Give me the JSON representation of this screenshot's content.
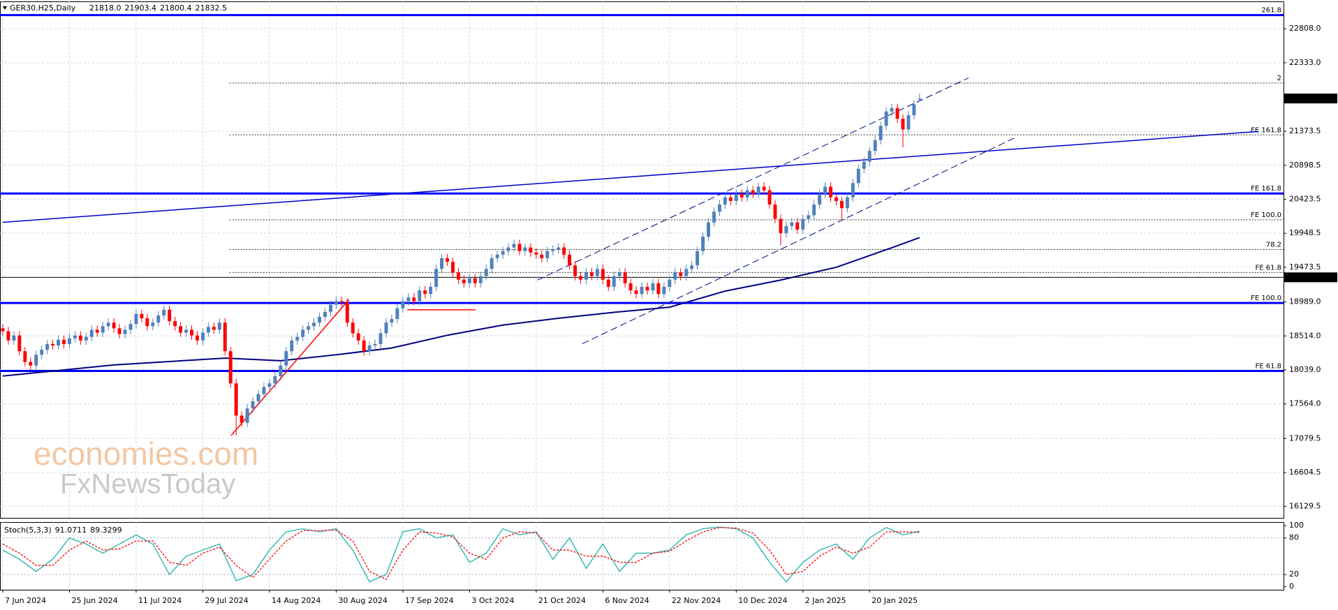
{
  "chart_data": {
    "type": "candlestick",
    "title": "GER30.H25,Daily",
    "header_values": [
      "21818.0",
      "21903.4",
      "21800.4",
      "21832.5"
    ],
    "color_up": "#4f81bd",
    "color_down": "#ff0000",
    "grid": true,
    "xlim": [
      -0.5,
      230.5
    ],
    "ylim": [
      15970,
      23190
    ],
    "xticks": [
      {
        "value": 0,
        "label": "7 Jun 2024"
      },
      {
        "value": 12,
        "label": "25 Jun 2024"
      },
      {
        "value": 24,
        "label": "11 Jul 2024"
      },
      {
        "value": 36,
        "label": "29 Jul 2024"
      },
      {
        "value": 48,
        "label": "14 Aug 2024"
      },
      {
        "value": 60,
        "label": "30 Aug 2024"
      },
      {
        "value": 72,
        "label": "17 Sep 2024"
      },
      {
        "value": 84,
        "label": "3 Oct 2024"
      },
      {
        "value": 96,
        "label": "21 Oct 2024"
      },
      {
        "value": 108,
        "label": "6 Nov 2024"
      },
      {
        "value": 120,
        "label": "22 Nov 2024"
      },
      {
        "value": 132,
        "label": "10 Dec 2024"
      },
      {
        "value": 144,
        "label": "2 Jan 2025"
      },
      {
        "value": 156,
        "label": "20 Jan 2025"
      }
    ],
    "yticks": [
      {
        "value": 22808,
        "label": "22808.0"
      },
      {
        "value": 22333,
        "label": "22333.0"
      },
      {
        "value": 21373.5,
        "label": "21373.5"
      },
      {
        "value": 20898.5,
        "label": "20898.5"
      },
      {
        "value": 20423.5,
        "label": "20423.5"
      },
      {
        "value": 19948.5,
        "label": "19948.5"
      },
      {
        "value": 19473.5,
        "label": "19473.5"
      },
      {
        "value": 18989,
        "label": "18989.0"
      },
      {
        "value": 18514,
        "label": "18514.0"
      },
      {
        "value": 18039,
        "label": "18039.0"
      },
      {
        "value": 17564,
        "label": "17564.0"
      },
      {
        "value": 17079.5,
        "label": "17079.5"
      },
      {
        "value": 16604.5,
        "label": "16604.5"
      },
      {
        "value": 16129.5,
        "label": "16129.5"
      }
    ],
    "open": [
      18620,
      18580,
      18450,
      18520,
      18300,
      18150,
      18100,
      18250,
      18320,
      18400,
      18380,
      18460,
      18400,
      18480,
      18520,
      18450,
      18500,
      18600,
      18560,
      18650,
      18700,
      18620,
      18540,
      18600,
      18680,
      18820,
      18760,
      18650,
      18700,
      18800,
      18880,
      18720,
      18650,
      18560,
      18600,
      18520,
      18450,
      18560,
      18640,
      18600,
      18700,
      18300,
      17850,
      17400,
      17300,
      17500,
      17600,
      17700,
      17800,
      17850,
      17950,
      18100,
      18300,
      18450,
      18500,
      18600,
      18650,
      18700,
      18780,
      18850,
      18950,
      19000,
      18980,
      18700,
      18550,
      18450,
      18300,
      18380,
      18400,
      18550,
      18700,
      18750,
      18900,
      19000,
      19050,
      19000,
      19150,
      19100,
      19200,
      19450,
      19600,
      19550,
      19400,
      19300,
      19250,
      19320,
      19250,
      19350,
      19450,
      19600,
      19650,
      19700,
      19750,
      19800,
      19700,
      19750,
      19680,
      19650,
      19600,
      19700,
      19720,
      19750,
      19650,
      19500,
      19350,
      19300,
      19400,
      19350,
      19450,
      19300,
      19200,
      19350,
      19400,
      19250,
      19150,
      19100,
      19200,
      19150,
      19250,
      19100,
      19200,
      19300,
      19400,
      19350,
      19450,
      19500,
      19700,
      19900,
      20100,
      20250,
      20350,
      20450,
      20400,
      20500,
      20450,
      20550,
      20500,
      20600,
      20550,
      20350,
      20150,
      19950,
      20050,
      20100,
      20000,
      20150,
      20200,
      20350,
      20500,
      20600,
      20450,
      20400,
      20300,
      20450,
      20650,
      20850,
      20950,
      21100,
      21250,
      21450,
      21650,
      21700,
      21550,
      21400,
      21600,
      21818
    ],
    "high": [
      18680,
      18640,
      18580,
      18580,
      18360,
      18210,
      18310,
      18380,
      18460,
      18460,
      18520,
      18520,
      18540,
      18580,
      18580,
      18560,
      18660,
      18660,
      18710,
      18760,
      18760,
      18680,
      18660,
      18740,
      18880,
      18880,
      18820,
      18760,
      18860,
      18940,
      18940,
      18780,
      18710,
      18660,
      18660,
      18580,
      18620,
      18700,
      18700,
      18760,
      18760,
      18360,
      17910,
      17460,
      17560,
      17660,
      17760,
      17860,
      17910,
      18010,
      18160,
      18360,
      18510,
      18560,
      18660,
      18710,
      18760,
      18840,
      18910,
      19010,
      19060,
      19060,
      19040,
      18760,
      18610,
      18510,
      18440,
      18460,
      18610,
      18760,
      18810,
      18960,
      19060,
      19110,
      19110,
      19210,
      19210,
      19260,
      19510,
      19660,
      19660,
      19610,
      19460,
      19360,
      19380,
      19380,
      19410,
      19510,
      19660,
      19710,
      19760,
      19810,
      19860,
      19860,
      19810,
      19810,
      19740,
      19710,
      19760,
      19780,
      19810,
      19810,
      19710,
      19560,
      19410,
      19460,
      19460,
      19510,
      19510,
      19360,
      19410,
      19460,
      19460,
      19310,
      19210,
      19260,
      19260,
      19310,
      19310,
      19260,
      19360,
      19460,
      19460,
      19510,
      19560,
      19760,
      19960,
      20160,
      20310,
      20410,
      20510,
      20510,
      20560,
      20560,
      20610,
      20610,
      20660,
      20660,
      20610,
      20410,
      20210,
      20110,
      20160,
      20160,
      20210,
      20260,
      20410,
      20560,
      20660,
      20660,
      20510,
      20460,
      20510,
      20710,
      20910,
      21010,
      21160,
      21310,
      21510,
      21710,
      21760,
      21760,
      21610,
      21660,
      21810,
      21903.4
    ],
    "low": [
      18520,
      18390,
      18390,
      18240,
      18090,
      18040,
      18040,
      18190,
      18260,
      18320,
      18320,
      18340,
      18340,
      18420,
      18390,
      18390,
      18440,
      18500,
      18500,
      18590,
      18560,
      18480,
      18480,
      18540,
      18620,
      18700,
      18590,
      18590,
      18640,
      18740,
      18660,
      18590,
      18500,
      18500,
      18460,
      18390,
      18390,
      18500,
      18540,
      18540,
      18240,
      17790,
      17122,
      17240,
      17240,
      17440,
      17540,
      17640,
      17740,
      17790,
      17890,
      18040,
      18240,
      18390,
      18440,
      18540,
      18590,
      18640,
      18720,
      18790,
      18890,
      18920,
      18640,
      18490,
      18390,
      18240,
      18240,
      18320,
      18340,
      18490,
      18640,
      18690,
      18840,
      18940,
      18940,
      18940,
      19040,
      19040,
      19140,
      19390,
      19490,
      19340,
      19240,
      19190,
      19190,
      19190,
      19190,
      19290,
      19390,
      19540,
      19590,
      19640,
      19690,
      19640,
      19640,
      19620,
      19590,
      19540,
      19540,
      19640,
      19660,
      19590,
      19440,
      19290,
      19240,
      19240,
      19290,
      19290,
      19240,
      19140,
      19140,
      19290,
      19190,
      19090,
      19040,
      19040,
      19090,
      19090,
      19040,
      19040,
      19140,
      19240,
      19290,
      19290,
      19390,
      19440,
      19640,
      19840,
      20040,
      20190,
      20290,
      20340,
      20340,
      20390,
      20390,
      20440,
      20440,
      20490,
      20290,
      20090,
      19780,
      19890,
      19990,
      19940,
      19940,
      20090,
      20140,
      20290,
      20440,
      20390,
      20340,
      20140,
      20240,
      20390,
      20590,
      20790,
      20890,
      21040,
      21190,
      21390,
      21590,
      21490,
      21150,
      21340,
      21540,
      21800.4
    ],
    "close": [
      18580,
      18450,
      18520,
      18300,
      18150,
      18100,
      18250,
      18320,
      18400,
      18380,
      18460,
      18400,
      18480,
      18520,
      18450,
      18500,
      18600,
      18560,
      18650,
      18700,
      18620,
      18540,
      18600,
      18680,
      18820,
      18760,
      18650,
      18700,
      18800,
      18880,
      18720,
      18650,
      18560,
      18600,
      18520,
      18450,
      18560,
      18640,
      18600,
      18700,
      18300,
      17850,
      17400,
      17300,
      17500,
      17600,
      17700,
      17800,
      17850,
      17950,
      18100,
      18300,
      18450,
      18500,
      18600,
      18650,
      18700,
      18780,
      18850,
      18950,
      19000,
      18980,
      18700,
      18550,
      18450,
      18300,
      18380,
      18400,
      18550,
      18700,
      18750,
      18900,
      19000,
      19050,
      19000,
      19150,
      19100,
      19200,
      19450,
      19600,
      19550,
      19400,
      19300,
      19250,
      19320,
      19250,
      19350,
      19450,
      19600,
      19650,
      19700,
      19750,
      19800,
      19700,
      19750,
      19680,
      19650,
      19600,
      19700,
      19720,
      19750,
      19650,
      19500,
      19350,
      19300,
      19400,
      19350,
      19450,
      19300,
      19200,
      19350,
      19400,
      19250,
      19150,
      19100,
      19200,
      19150,
      19250,
      19100,
      19200,
      19300,
      19400,
      19350,
      19450,
      19500,
      19700,
      19900,
      20100,
      20250,
      20350,
      20450,
      20400,
      20500,
      20450,
      20550,
      20500,
      20600,
      20550,
      20350,
      20150,
      19950,
      20050,
      20100,
      20000,
      20150,
      20200,
      20350,
      20500,
      20600,
      20450,
      20400,
      20300,
      20450,
      20650,
      20850,
      20950,
      21100,
      21250,
      21450,
      21650,
      21700,
      21550,
      21400,
      21600,
      21750,
      21832.5
    ],
    "moving_average": {
      "color": "#000080",
      "x": [
        0,
        20,
        40,
        50,
        60,
        70,
        80,
        90,
        100,
        110,
        120,
        130,
        140,
        150,
        160,
        165
      ],
      "values": [
        17953,
        18108,
        18203,
        18167,
        18250,
        18345,
        18523,
        18665,
        18760,
        18843,
        18915,
        19140,
        19295,
        19473,
        19746,
        19888
      ]
    },
    "levels": [
      {
        "value": 22998,
        "label": "261.8",
        "color": "#0000ff",
        "style": "thick",
        "x_start": -0.5
      },
      {
        "value": 20505,
        "label": "FE 161.8",
        "color": "#0000ff",
        "style": "thick",
        "x_start": -0.5
      },
      {
        "value": 18974,
        "label": "FE 100.0",
        "color": "#0000ff",
        "style": "thick",
        "x_start": -0.5
      },
      {
        "value": 18024,
        "label": "FE 61.8",
        "color": "#0000ff",
        "style": "thick",
        "x_start": -0.5
      },
      {
        "value": 22048,
        "label": "2",
        "color": "#333333",
        "style": "dotted",
        "x_start": 40.8
      },
      {
        "value": 21324,
        "label": "FE 161.8",
        "color": "#333333",
        "style": "dotted",
        "x_start": 40.8
      },
      {
        "value": 20137,
        "label": "FE 100.0",
        "color": "#333333",
        "style": "dotted",
        "x_start": 40.8
      },
      {
        "value": 19722,
        "label": "78.2",
        "color": "#333333",
        "style": "dotted",
        "x_start": 40.8
      },
      {
        "value": 19401,
        "label": "FE 61.8",
        "color": "#333333",
        "style": "dotted",
        "x_start": 40.8
      },
      {
        "value": 19332.7,
        "color": "#000000",
        "style": "boxed",
        "x_start": -0.5
      }
    ],
    "trendlines": [
      {
        "points": [
          [
            0,
            20102
          ],
          [
            226,
            21372
          ]
        ],
        "color": "#0000cd",
        "style": "solid"
      },
      {
        "points": [
          [
            96.2,
            19294
          ],
          [
            173.8,
            22120
          ]
        ],
        "color": "#000080",
        "style": "dashed"
      },
      {
        "points": [
          [
            104.3,
            18404
          ],
          [
            182.3,
            21289
          ]
        ],
        "color": "#000080",
        "style": "dashed"
      },
      {
        "points": [
          [
            41.1,
            17122
          ],
          [
            62.3,
            19021
          ]
        ],
        "color": "#ff0000",
        "style": "solid"
      },
      {
        "points": [
          [
            72.8,
            18879
          ],
          [
            85.1,
            18879
          ]
        ],
        "color": "#ff0000",
        "style": "solid"
      }
    ],
    "watermark": [
      "economies.com",
      "FxNewsToday"
    ],
    "indicator": {
      "title": "Stoch(5,3,3)",
      "ylim": [
        -5,
        106
      ],
      "yticks": [
        100,
        80,
        20,
        0
      ],
      "x": [
        0,
        3,
        6,
        9,
        12,
        15,
        18,
        21,
        24,
        27,
        30,
        33,
        36,
        39,
        42,
        45,
        48,
        51,
        54,
        57,
        60,
        63,
        66,
        69,
        72,
        75,
        78,
        81,
        84,
        87,
        90,
        93,
        96,
        99,
        102,
        105,
        108,
        111,
        114,
        117,
        120,
        123,
        126,
        129,
        132,
        135,
        138,
        141,
        144,
        147,
        150,
        153,
        156,
        159,
        162,
        165
      ],
      "series": [
        {
          "color": "#20b2aa",
          "style": "solid",
          "values": [
            60,
            45,
            25,
            45,
            80,
            70,
            55,
            70,
            85,
            70,
            20,
            50,
            60,
            70,
            10,
            20,
            60,
            90,
            95,
            90,
            95,
            60,
            8,
            20,
            90,
            95,
            80,
            85,
            40,
            55,
            95,
            85,
            90,
            45,
            80,
            30,
            70,
            25,
            55,
            55,
            60,
            85,
            95,
            98,
            95,
            80,
            40,
            8,
            40,
            60,
            70,
            45,
            80,
            97,
            85,
            91.0711
          ]
        },
        {
          "color": "#ff0000",
          "style": "dashed",
          "values": [
            70,
            55,
            35,
            35,
            60,
            75,
            60,
            62,
            75,
            75,
            40,
            35,
            55,
            65,
            35,
            15,
            45,
            75,
            92,
            92,
            93,
            75,
            25,
            12,
            60,
            90,
            88,
            82,
            55,
            45,
            80,
            90,
            88,
            60,
            60,
            50,
            50,
            40,
            40,
            55,
            58,
            75,
            90,
            97,
            96,
            88,
            60,
            20,
            25,
            50,
            65,
            55,
            65,
            90,
            90,
            89.3299
          ]
        }
      ]
    }
  }
}
